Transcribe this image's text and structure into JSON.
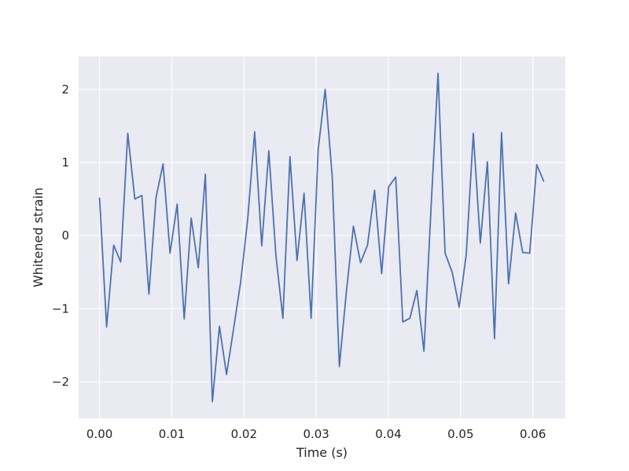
{
  "chart_data": {
    "type": "line",
    "title": "",
    "xlabel": "Time (s)",
    "ylabel": "Whitened strain",
    "xlim": [
      -0.0029,
      0.0645
    ],
    "ylim": [
      -2.5,
      2.45
    ],
    "grid": true,
    "x_ticks": [
      0.0,
      0.01,
      0.02,
      0.03,
      0.04,
      0.05,
      0.06
    ],
    "x_tick_labels": [
      "0.00",
      "0.01",
      "0.02",
      "0.03",
      "0.04",
      "0.05",
      "0.06"
    ],
    "y_ticks": [
      -2,
      -1,
      0,
      1,
      2
    ],
    "y_tick_labels": [
      "−2",
      "−1",
      "0",
      "1",
      "2"
    ],
    "colors": {
      "background": "#eaeaf2",
      "grid": "#ffffff",
      "line": "#4c72b0"
    },
    "series": [
      {
        "x": [
          0.0,
          0.000977,
          0.001953,
          0.00293,
          0.003906,
          0.004883,
          0.005859,
          0.006836,
          0.007813,
          0.008789,
          0.009766,
          0.010742,
          0.011719,
          0.012695,
          0.013672,
          0.014648,
          0.015625,
          0.016602,
          0.017578,
          0.018555,
          0.019531,
          0.020508,
          0.021484,
          0.022461,
          0.023438,
          0.024414,
          0.025391,
          0.026367,
          0.027344,
          0.02832,
          0.029297,
          0.030273,
          0.03125,
          0.032227,
          0.033203,
          0.03418,
          0.035156,
          0.036133,
          0.037109,
          0.038086,
          0.039063,
          0.040039,
          0.041016,
          0.041992,
          0.042969,
          0.043945,
          0.044922,
          0.045898,
          0.046875,
          0.047852,
          0.048828,
          0.049805,
          0.050781,
          0.051758,
          0.052734,
          0.053711,
          0.054688,
          0.055664,
          0.056641,
          0.057617,
          0.058594,
          0.05957,
          0.060547,
          0.061523
        ],
        "y": [
          0.52,
          -1.25,
          -0.13,
          -0.36,
          1.4,
          0.5,
          0.55,
          -0.8,
          0.52,
          0.98,
          -0.24,
          0.43,
          -1.14,
          0.24,
          -0.44,
          0.84,
          -2.27,
          -1.24,
          -1.9,
          -1.28,
          -0.64,
          0.22,
          1.42,
          -0.14,
          1.16,
          -0.27,
          -1.13,
          1.08,
          -0.34,
          0.58,
          -1.13,
          1.18,
          2.0,
          0.8,
          -1.79,
          -0.77,
          0.13,
          -0.37,
          -0.13,
          0.62,
          -0.52,
          0.67,
          0.8,
          -1.18,
          -1.13,
          -0.75,
          -1.58,
          0.37,
          2.22,
          -0.24,
          -0.5,
          -0.98,
          -0.26,
          1.4,
          -0.1,
          1.01,
          -1.41,
          1.41,
          -0.66,
          0.31,
          -0.23,
          -0.24,
          0.97,
          0.74
        ]
      }
    ]
  }
}
